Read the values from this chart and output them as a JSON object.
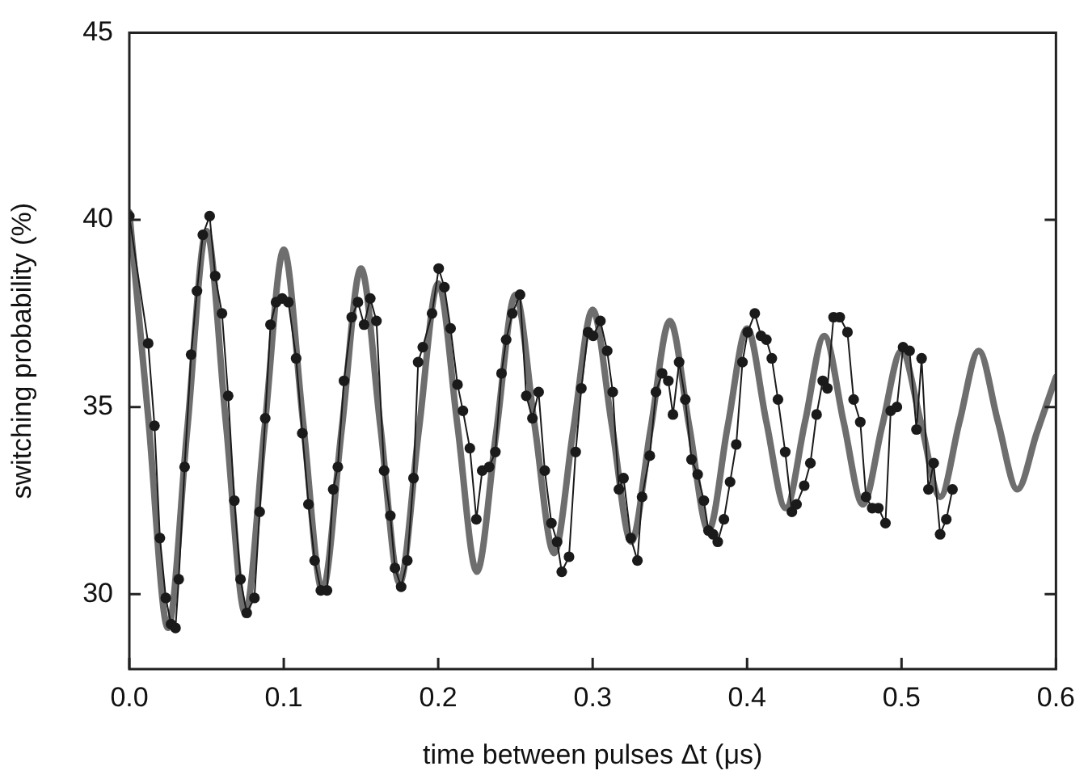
{
  "chart_data": {
    "type": "line",
    "xlabel": "time between pulses Δt (μs)",
    "ylabel": "switching probability (%)",
    "xlim": [
      0,
      0.6
    ],
    "xticks": [
      {
        "value": 0,
        "label": "0.0"
      },
      0.1,
      0.2,
      0.3,
      0.4,
      0.5,
      0.6
    ],
    "ylim": [
      28,
      45
    ],
    "yticks": [
      30,
      35,
      40,
      45
    ],
    "grid": false,
    "legend": false,
    "series": [
      {
        "marker": "none",
        "color": "#6e6e6e",
        "x": [
          0,
          0.0125,
          0.025,
          0.0375,
          0.05,
          0.0625,
          0.075,
          0.0875,
          0.1,
          0.1125,
          0.125,
          0.1375,
          0.15,
          0.1625,
          0.175,
          0.1875,
          0.2,
          0.2125,
          0.225,
          0.2375,
          0.25,
          0.2625,
          0.275,
          0.2875,
          0.3,
          0.3125,
          0.325,
          0.3375,
          0.35,
          0.3625,
          0.375,
          0.3875,
          0.4,
          0.4125,
          0.425,
          0.4375,
          0.45,
          0.4625,
          0.475,
          0.4875,
          0.5,
          0.5125,
          0.525,
          0.5375,
          0.55,
          0.5625,
          0.575,
          0.5875,
          0.6
        ],
        "values": [
          40.2,
          34.6,
          29.1,
          34.4,
          39.7,
          34.6,
          29.5,
          34.4,
          39.2,
          34.6,
          30.1,
          34.4,
          38.7,
          34.5,
          30.3,
          34.4,
          38.3,
          34.5,
          30.6,
          34.3,
          38.0,
          34.5,
          31.1,
          34.4,
          37.6,
          34.5,
          31.4,
          34.4,
          37.3,
          34.5,
          31.7,
          34.5,
          37.1,
          34.6,
          32.3,
          34.6,
          36.9,
          34.6,
          32.4,
          34.5,
          36.5,
          34.6,
          32.6,
          34.6,
          36.5,
          34.6,
          32.8,
          34.3,
          35.8
        ]
      },
      {
        "marker": "circle",
        "color": "#1a1a1a",
        "x": [
          0,
          0.0122,
          0.0163,
          0.0198,
          0.0236,
          0.027,
          0.0299,
          0.032,
          0.0358,
          0.04,
          0.0438,
          0.0476,
          0.052,
          0.0556,
          0.06,
          0.064,
          0.068,
          0.072,
          0.076,
          0.081,
          0.0844,
          0.088,
          0.0914,
          0.095,
          0.099,
          0.103,
          0.108,
          0.112,
          0.116,
          0.12,
          0.124,
          0.128,
          0.132,
          0.135,
          0.139,
          0.144,
          0.148,
          0.152,
          0.156,
          0.16,
          0.165,
          0.169,
          0.172,
          0.176,
          0.18,
          0.184,
          0.187,
          0.19,
          0.196,
          0.2003,
          0.204,
          0.208,
          0.2125,
          0.216,
          0.2205,
          0.2247,
          0.2285,
          0.233,
          0.237,
          0.241,
          0.244,
          0.248,
          0.253,
          0.257,
          0.261,
          0.265,
          0.269,
          0.2733,
          0.277,
          0.28,
          0.2847,
          0.289,
          0.2927,
          0.297,
          0.3003,
          0.305,
          0.3094,
          0.313,
          0.317,
          0.32,
          0.3247,
          0.329,
          0.332,
          0.337,
          0.341,
          0.345,
          0.349,
          0.352,
          0.356,
          0.36,
          0.364,
          0.368,
          0.372,
          0.375,
          0.378,
          0.381,
          0.385,
          0.389,
          0.393,
          0.397,
          0.4004,
          0.405,
          0.409,
          0.4125,
          0.416,
          0.42,
          0.4247,
          0.429,
          0.432,
          0.437,
          0.441,
          0.445,
          0.449,
          0.452,
          0.456,
          0.46,
          0.465,
          0.469,
          0.4733,
          0.477,
          0.481,
          0.485,
          0.4896,
          0.493,
          0.497,
          0.501,
          0.5052,
          0.5097,
          0.513,
          0.5174,
          0.5208,
          0.525,
          0.529,
          0.533
        ],
        "values": [
          40.1,
          36.7,
          34.5,
          31.5,
          29.9,
          29.2,
          29.1,
          30.4,
          33.4,
          36.4,
          38.1,
          39.6,
          40.1,
          38.5,
          37.5,
          35.3,
          32.5,
          30.4,
          29.5,
          29.9,
          32.2,
          34.7,
          37.2,
          37.8,
          37.9,
          37.8,
          36.3,
          34.3,
          32.4,
          30.9,
          30.1,
          30.1,
          32.8,
          33.4,
          35.7,
          37.4,
          37.8,
          37.2,
          37.9,
          37.3,
          33.3,
          32.1,
          30.7,
          30.2,
          30.9,
          33.1,
          36.2,
          36.6,
          37.5,
          38.7,
          38.2,
          37.1,
          35.6,
          34.9,
          33.9,
          32.0,
          33.3,
          33.4,
          33.8,
          35.9,
          36.8,
          37.5,
          38.0,
          35.3,
          34.7,
          35.4,
          33.3,
          31.9,
          31.4,
          30.6,
          31.0,
          33.8,
          35.5,
          37.0,
          36.9,
          37.3,
          36.5,
          35.4,
          32.8,
          33.1,
          31.5,
          30.9,
          32.6,
          33.7,
          35.4,
          35.9,
          35.7,
          34.8,
          36.2,
          35.2,
          33.6,
          33.2,
          32.5,
          31.7,
          31.6,
          31.4,
          32.0,
          33.0,
          34.0,
          36.2,
          37.0,
          37.5,
          36.9,
          36.8,
          36.3,
          35.2,
          33.8,
          32.2,
          32.4,
          32.9,
          33.5,
          34.8,
          35.7,
          35.5,
          37.4,
          37.4,
          37.0,
          35.2,
          34.6,
          32.6,
          32.3,
          32.3,
          31.9,
          34.9,
          35.0,
          36.6,
          36.5,
          34.4,
          36.3,
          32.8,
          33.5,
          31.6,
          32.0,
          32.8
        ]
      }
    ]
  }
}
